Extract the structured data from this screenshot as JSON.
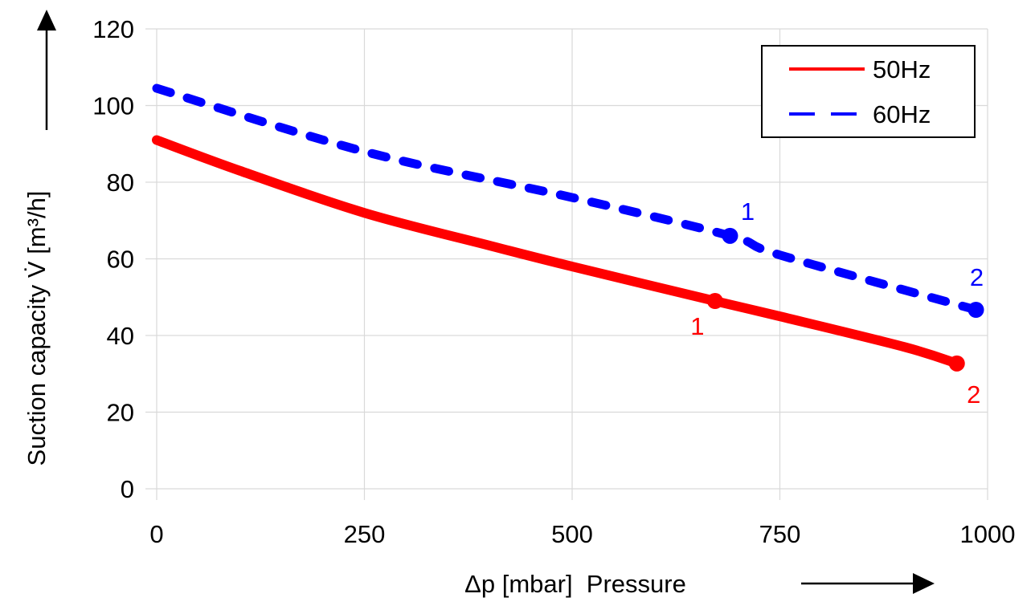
{
  "chart_data": {
    "type": "line",
    "title": "",
    "xlabel": "Δp [mbar]  Pressure",
    "ylabel": "Suction capacity V̇ [m³/h]",
    "xlim": [
      0,
      1000
    ],
    "ylim": [
      0,
      120
    ],
    "xticks": [
      0,
      250,
      500,
      750,
      1000
    ],
    "yticks": [
      0,
      20,
      40,
      60,
      80,
      100,
      120
    ],
    "xtick_labels": [
      "0",
      "250",
      "500",
      "750",
      "1000"
    ],
    "ytick_labels": [
      "0",
      "20",
      "40",
      "60",
      "80",
      "100",
      "120"
    ],
    "grid": true,
    "legend_position": "top-right",
    "series": [
      {
        "name": "50Hz",
        "color": "#ff0000",
        "style": "solid",
        "x": [
          0,
          100,
          250,
          400,
          500,
          672,
          750,
          900,
          963
        ],
        "y": [
          91,
          83,
          72,
          63.5,
          58,
          49,
          45,
          37,
          32.7
        ],
        "markers": [
          {
            "label": "1",
            "x": 672,
            "y": 49
          },
          {
            "label": "2",
            "x": 963,
            "y": 32.7
          }
        ]
      },
      {
        "name": "60Hz",
        "color": "#0000ff",
        "style": "dashed",
        "x": [
          0,
          250,
          500,
          690,
          750,
          986
        ],
        "y": [
          104.5,
          88,
          76,
          66,
          61,
          46.7
        ],
        "markers": [
          {
            "label": "1",
            "x": 690,
            "y": 66
          },
          {
            "label": "2",
            "x": 986,
            "y": 46.7
          }
        ]
      }
    ],
    "annotations": [
      {
        "text": "1",
        "series": "60Hz"
      },
      {
        "text": "2",
        "series": "60Hz"
      },
      {
        "text": "1",
        "series": "50Hz"
      },
      {
        "text": "2",
        "series": "50Hz"
      }
    ],
    "axis_arrows": [
      "y-up",
      "x-right"
    ]
  }
}
